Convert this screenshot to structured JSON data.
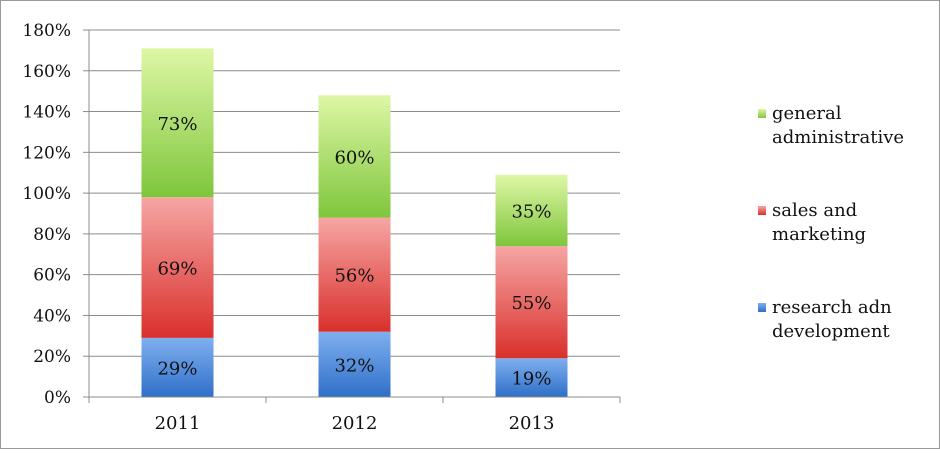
{
  "chart_data": {
    "type": "bar",
    "stacked": true,
    "categories": [
      "2011",
      "2012",
      "2013"
    ],
    "series": [
      {
        "name": "research adn development",
        "legend_lines": [
          "research adn",
          "development"
        ],
        "values": [
          29,
          32,
          19
        ],
        "labels": [
          "29%",
          "32%",
          "19%"
        ],
        "color_top": "#7fb0ef",
        "color_bottom": "#2f6fc8"
      },
      {
        "name": "sales and marketing",
        "legend_lines": [
          "sales and",
          "marketing"
        ],
        "values": [
          69,
          56,
          55
        ],
        "labels": [
          "69%",
          "56%",
          "55%"
        ],
        "color_top": "#f6a6a4",
        "color_bottom": "#d9302c"
      },
      {
        "name": "general administrative",
        "legend_lines": [
          "general",
          "administrative"
        ],
        "values": [
          73,
          60,
          35
        ],
        "labels": [
          "73%",
          "60%",
          "35%"
        ],
        "color_top": "#def7a6",
        "color_bottom": "#7fc63c"
      }
    ],
    "ylim": [
      0,
      180
    ],
    "yticks": [
      0,
      20,
      40,
      60,
      80,
      100,
      120,
      140,
      160,
      180
    ],
    "ytick_labels": [
      "0%",
      "20%",
      "40%",
      "60%",
      "80%",
      "100%",
      "120%",
      "140%",
      "160%",
      "180%"
    ],
    "grid": true,
    "legend_position": "right",
    "title": "",
    "xlabel": "",
    "ylabel": ""
  }
}
